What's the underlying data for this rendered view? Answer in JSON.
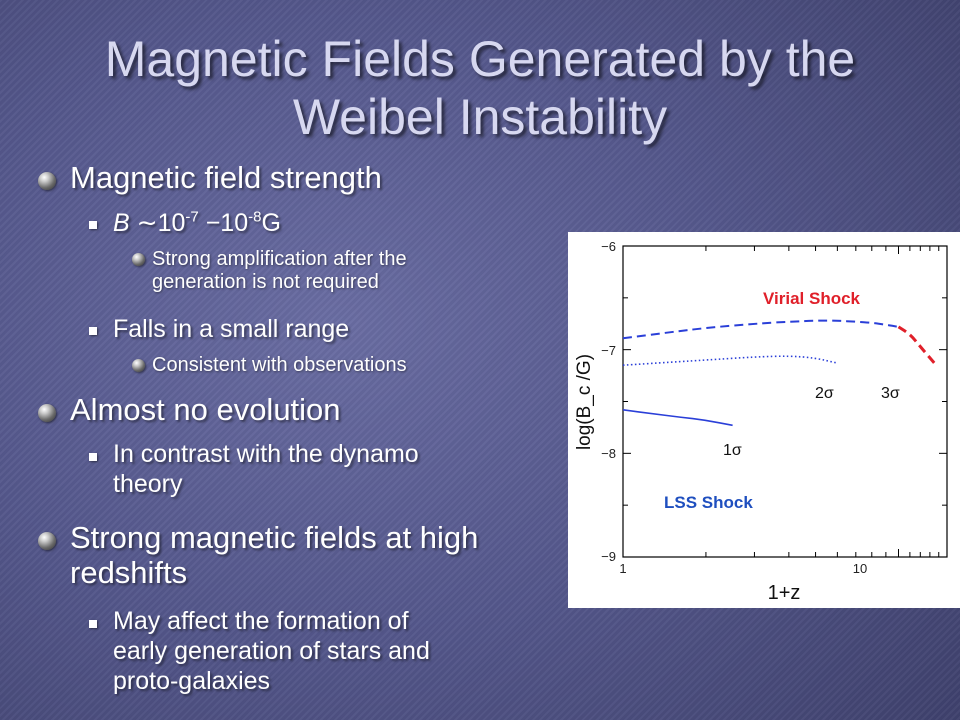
{
  "slide": {
    "title_line1": "Magnetic Fields Generated by the",
    "title_line2": "Weibel Instability"
  },
  "bullets": {
    "b1": {
      "text": "Magnetic field strength"
    },
    "b1_1": {
      "var": "B",
      "approx": "∼10",
      "exp1": "-7",
      "dash": " −10",
      "exp2": "-8",
      "unit": "G"
    },
    "b1_1_1": {
      "line1": "Strong amplification after the",
      "line2": "generation is not required"
    },
    "b1_2": {
      "text": "Falls in a small range"
    },
    "b1_2_1": {
      "text": "Consistent with observations"
    },
    "b2": {
      "text": "Almost no evolution"
    },
    "b2_1": {
      "line1": "In contrast with the dynamo",
      "line2": "theory"
    },
    "b3": {
      "line1": "Strong magnetic fields at high",
      "line2": "redshifts"
    },
    "b3_1": {
      "line1": "May affect the formation of",
      "line2": "early generation of stars and",
      "line3": "proto-galaxies"
    }
  },
  "chart_data": {
    "type": "line",
    "xlabel": "1+z",
    "ylabel": "log(B_c /G)",
    "xscale": "log",
    "xlim": [
      1,
      15
    ],
    "ylim": [
      -9,
      -6
    ],
    "x_ticks": [
      "1",
      "10"
    ],
    "y_ticks": [
      "−6",
      "−7",
      "−8",
      "−9"
    ],
    "annotations": {
      "virial": "Virial Shock",
      "lss": "LSS Shock",
      "s1": "1σ",
      "s2": "2σ",
      "s3": "3σ"
    },
    "colors": {
      "blue": "#2a3fd8",
      "red": "#e0202a",
      "annot_blue": "#1f4fbf"
    },
    "series": [
      {
        "style": "solid",
        "color": "blue",
        "x": [
          1,
          1.3,
          1.6,
          2.0,
          2.5
        ],
        "y": [
          -7.58,
          -7.62,
          -7.65,
          -7.68,
          -7.73
        ]
      },
      {
        "style": "dotted",
        "color": "blue",
        "x": [
          1,
          1.5,
          2.0,
          3.0,
          4.0,
          5.0,
          6.0
        ],
        "y": [
          -7.15,
          -7.12,
          -7.1,
          -7.07,
          -7.06,
          -7.08,
          -7.13
        ]
      },
      {
        "style": "dashed",
        "color": "blue",
        "x": [
          1,
          1.5,
          2.0,
          3.0,
          4.0,
          5.0,
          6.0,
          7.0,
          8.0,
          9.0,
          10.0
        ],
        "y": [
          -6.89,
          -6.83,
          -6.79,
          -6.75,
          -6.73,
          -6.72,
          -6.72,
          -6.73,
          -6.74,
          -6.76,
          -6.78
        ]
      },
      {
        "style": "dashed",
        "color": "red",
        "x": [
          10.0,
          11.0,
          12.0,
          13.5
        ],
        "y": [
          -6.78,
          -6.85,
          -6.97,
          -7.13
        ]
      }
    ]
  }
}
